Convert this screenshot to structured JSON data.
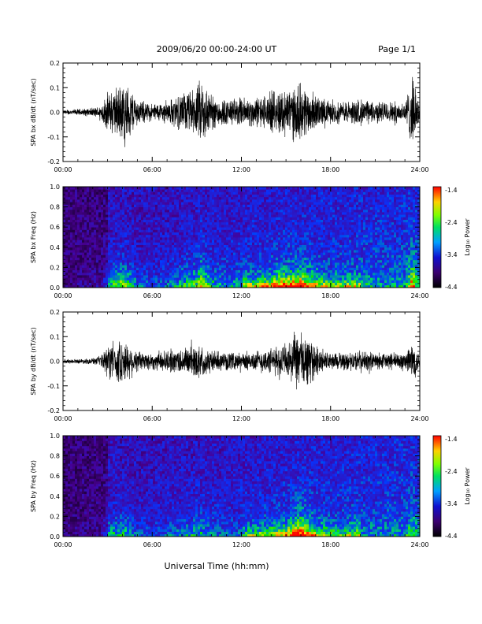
{
  "header": {
    "title": "2009/06/20  00:00-24:00 UT",
    "page": "Page 1/1"
  },
  "footer": {
    "xlabel": "Universal Time (hh:mm)"
  },
  "colorbar": {
    "label": "Log₁₀ Power",
    "ticks": [
      "-1.4",
      "-2.4",
      "-3.4",
      "-4.4"
    ],
    "range": [
      -4.4,
      -1.4
    ]
  },
  "chart_data": [
    {
      "type": "line",
      "ylabel": "SPA bx dB/dt (nT/sec)",
      "xlim": [
        "00:00",
        "24:00"
      ],
      "ylim": [
        -0.2,
        0.2
      ],
      "xticks": [
        "00:00",
        "06:00",
        "12:00",
        "18:00",
        "24:00"
      ],
      "yticks": [
        "0.2",
        "0.1",
        "0.0",
        "-0.1",
        "-0.2"
      ],
      "envelope": {
        "hours": [
          0,
          1,
          2,
          2.5,
          3,
          4,
          4.5,
          5,
          6,
          7,
          8,
          9,
          9.3,
          10,
          11,
          12,
          13,
          14,
          15,
          16,
          16.5,
          17,
          18,
          19,
          20,
          21,
          22,
          23,
          23.5,
          24
        ],
        "amplitude": [
          0.01,
          0.015,
          0.02,
          0.03,
          0.09,
          0.14,
          0.12,
          0.06,
          0.04,
          0.05,
          0.09,
          0.11,
          0.17,
          0.08,
          0.06,
          0.07,
          0.07,
          0.09,
          0.12,
          0.13,
          0.11,
          0.08,
          0.05,
          0.05,
          0.06,
          0.05,
          0.05,
          0.05,
          0.16,
          0.04
        ]
      }
    },
    {
      "type": "heatmap",
      "ylabel": "SPA bx Freq (Hz)",
      "xlim": [
        "00:00",
        "24:00"
      ],
      "ylim": [
        0.0,
        1.0
      ],
      "xticks": [
        "00:00",
        "06:00",
        "12:00",
        "18:00",
        "24:00"
      ],
      "yticks": [
        "1.0",
        "0.8",
        "0.6",
        "0.4",
        "0.2",
        "0.0"
      ],
      "zlim": [
        -4.4,
        -1.4
      ]
    },
    {
      "type": "line",
      "ylabel": "SPA by dB/dt (nT/sec)",
      "xlim": [
        "00:00",
        "24:00"
      ],
      "ylim": [
        -0.2,
        0.2
      ],
      "xticks": [
        "00:00",
        "06:00",
        "12:00",
        "18:00",
        "24:00"
      ],
      "yticks": [
        "0.2",
        "0.1",
        "0.0",
        "-0.1",
        "-0.2"
      ],
      "envelope": {
        "hours": [
          0,
          1,
          2,
          2.5,
          3,
          4,
          4.5,
          5,
          6,
          7,
          8,
          9,
          10,
          11,
          12,
          13,
          14,
          15,
          15.5,
          16,
          16.5,
          17,
          18,
          19,
          20,
          21,
          22,
          23,
          23.5,
          24
        ],
        "amplitude": [
          0.01,
          0.01,
          0.015,
          0.02,
          0.08,
          0.1,
          0.08,
          0.05,
          0.04,
          0.05,
          0.06,
          0.08,
          0.05,
          0.04,
          0.04,
          0.05,
          0.06,
          0.08,
          0.12,
          0.14,
          0.11,
          0.07,
          0.04,
          0.04,
          0.05,
          0.04,
          0.04,
          0.04,
          0.1,
          0.03
        ]
      }
    },
    {
      "type": "heatmap",
      "ylabel": "SPA by Freq (Hz)",
      "xlim": [
        "00:00",
        "24:00"
      ],
      "ylim": [
        0.0,
        1.0
      ],
      "xticks": [
        "00:00",
        "06:00",
        "12:00",
        "18:00",
        "24:00"
      ],
      "yticks": [
        "1.0",
        "0.8",
        "0.6",
        "0.4",
        "0.2",
        "0.0"
      ],
      "zlim": [
        -4.4,
        -1.4
      ]
    }
  ]
}
